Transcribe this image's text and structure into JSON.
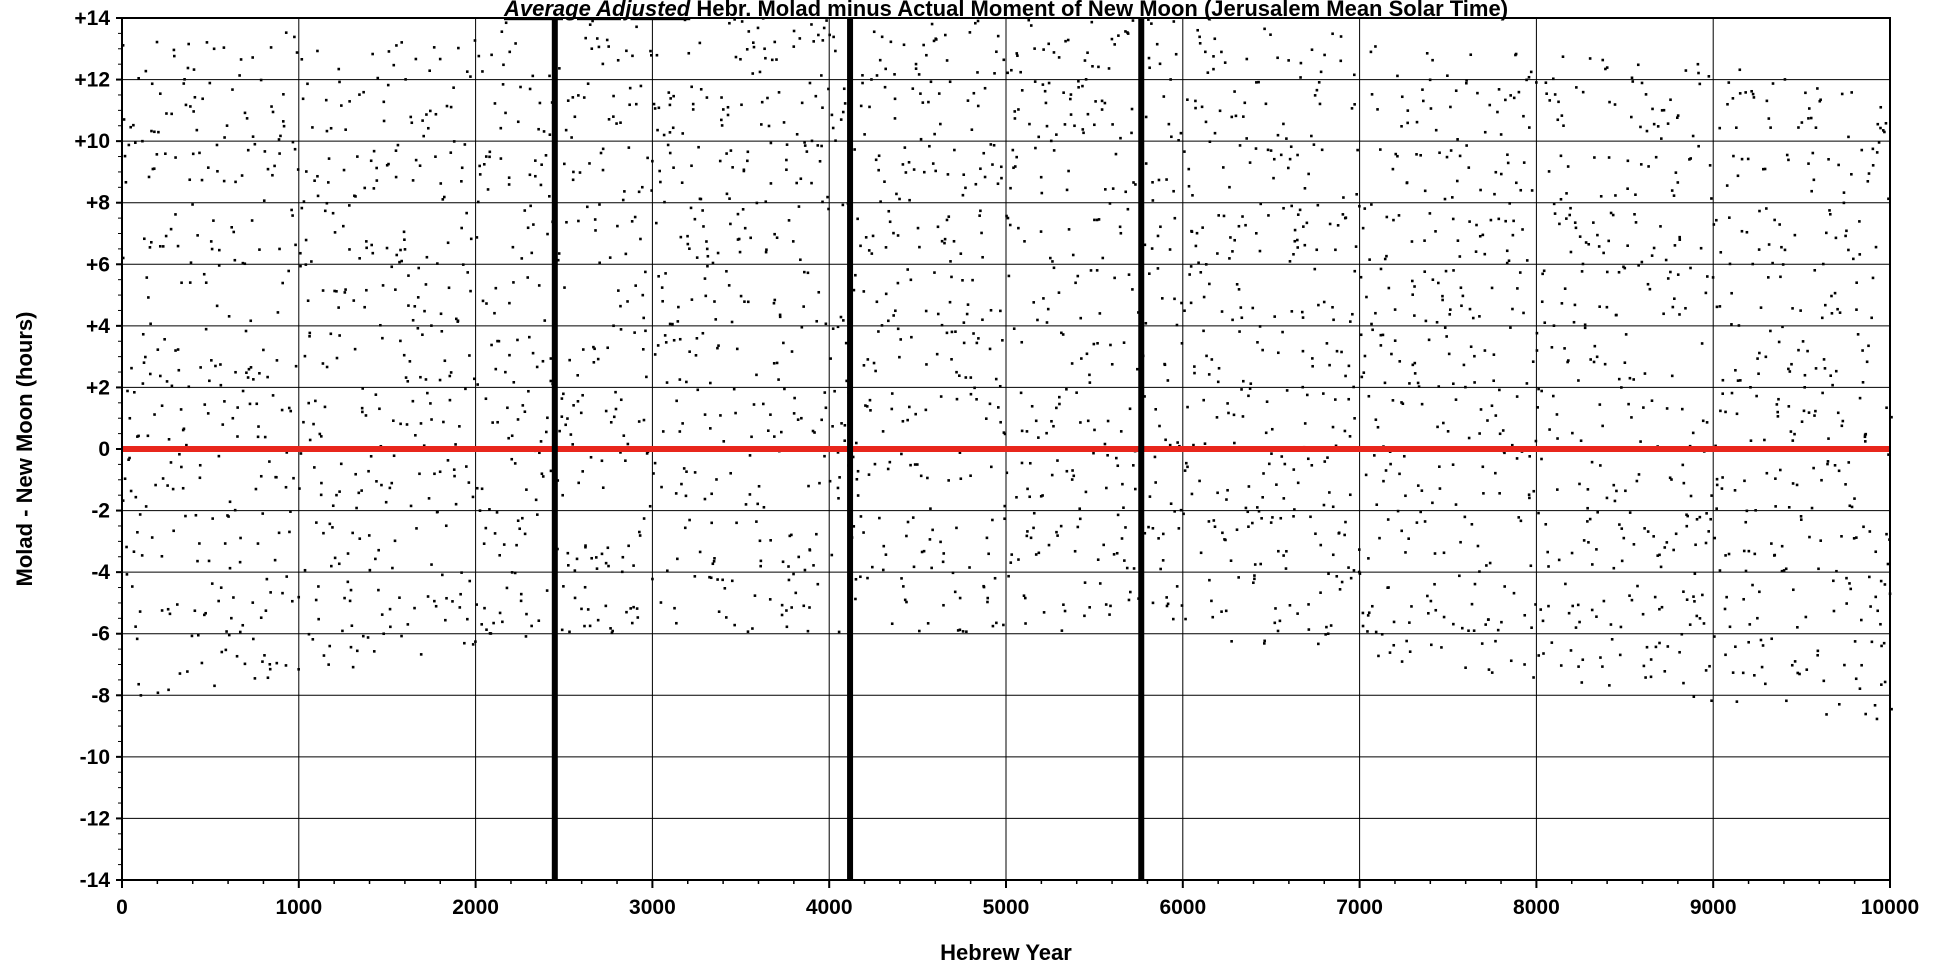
{
  "chart_data": {
    "type": "scatter",
    "title_prefix": "Average Adjusted",
    "title_rest": " Hebr. Molad minus Actual Moment of New Moon (Jerusalem Mean Solar Time)",
    "xlabel": "Hebrew Year",
    "ylabel": "Molad - New Moon (hours)",
    "xlim": [
      0,
      10000
    ],
    "ylim": [
      -14,
      14
    ],
    "x_ticks": [
      0,
      1000,
      2000,
      3000,
      4000,
      5000,
      6000,
      7000,
      8000,
      9000,
      10000
    ],
    "x_tick_labels": [
      "0",
      "1000",
      "2000",
      "3000",
      "4000",
      "5000",
      "6000",
      "7000",
      "8000",
      "9000",
      "10000"
    ],
    "y_ticks": [
      14,
      12,
      10,
      8,
      6,
      4,
      2,
      0,
      -2,
      -4,
      -6,
      -8,
      -10,
      -12,
      -14
    ],
    "y_tick_labels": [
      "+14",
      "+12",
      "+10",
      "+8",
      "+6",
      "+4",
      "+2",
      "0",
      "-2",
      "-4",
      "-6",
      "-8",
      "-10",
      "-12",
      "-14"
    ],
    "grid": true,
    "reference_line": {
      "y": 0,
      "color": "#e8261c"
    },
    "vertical_markers": [
      2448,
      4118,
      5765
    ],
    "series": [
      {
        "marker_color": "#000000",
        "points_per_year_step": 10,
        "envelope_upper": [
          [
            0,
            13.2
          ],
          [
            1000,
            13.6
          ],
          [
            2400,
            14
          ],
          [
            6000,
            14
          ],
          [
            7000,
            13.4
          ],
          [
            8000,
            12.8
          ],
          [
            9000,
            12.5
          ],
          [
            10000,
            11.6
          ]
        ],
        "envelope_lower": [
          [
            0,
            -8.2
          ],
          [
            1000,
            -7.4
          ],
          [
            2000,
            -6.4
          ],
          [
            2400,
            -6.0
          ],
          [
            5800,
            -6.0
          ],
          [
            6500,
            -6.4
          ],
          [
            7000,
            -6.8
          ],
          [
            8000,
            -7.5
          ],
          [
            9000,
            -8.2
          ],
          [
            10000,
            -9.0
          ]
        ]
      }
    ]
  }
}
